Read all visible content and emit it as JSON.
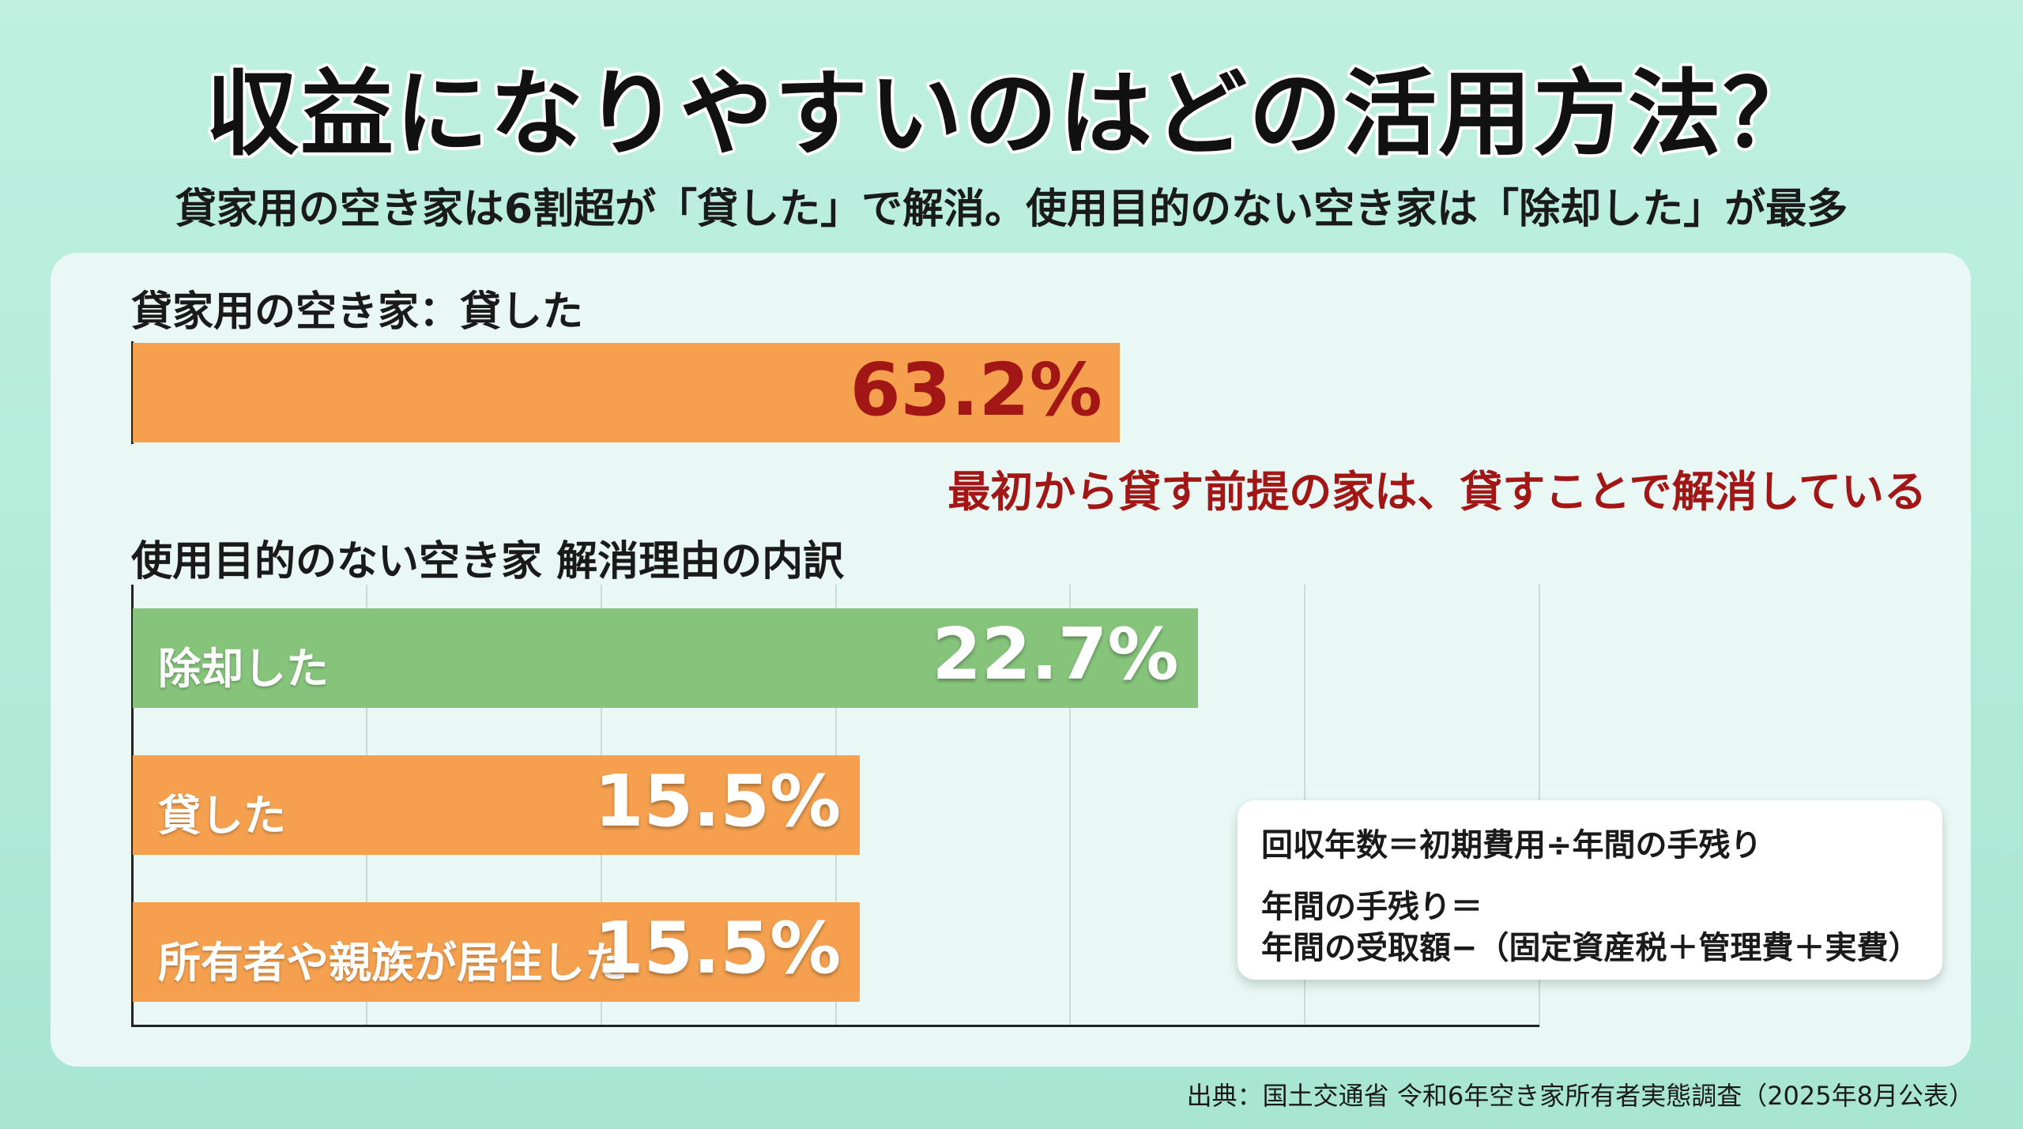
{
  "title": "収益になりやすいのはどの活用方法？",
  "subtitle": "貸家用の空き家は6割超が「貸した」で解消。使用目的のない空き家は「除却した」が最多",
  "colors": {
    "orange": "#f4a04f",
    "green": "#86c47c",
    "accent_red": "#a31616",
    "background": "#b6ecdb"
  },
  "chart_data": [
    {
      "type": "bar",
      "title": "貸家用の空き家：貸した",
      "categories": [
        "貸した"
      ],
      "values": [
        63.2
      ],
      "value_labels": [
        "63.2%"
      ],
      "unit": "%",
      "xlim": [
        0,
        100
      ],
      "annotation": "最初から貸す前提の家は、貸すことで解消している",
      "color": "#f4a04f"
    },
    {
      "type": "bar",
      "title": "使用目的のない空き家 解消理由の内訳",
      "categories": [
        "除却した",
        "貸した",
        "所有者や親族が居住した"
      ],
      "values": [
        22.7,
        15.5,
        15.5
      ],
      "value_labels": [
        "22.7%",
        "15.5%",
        "15.5%"
      ],
      "colors": [
        "#86c47c",
        "#f4a04f",
        "#f4a04f"
      ],
      "unit": "%",
      "xlim": [
        0,
        30
      ],
      "grid": true
    }
  ],
  "formula": {
    "line1": "回収年数＝初期費用÷年間の手残り",
    "line2": "年間の手残り＝",
    "line3": "年間の受取額−（固定資産税＋管理費＋実費）"
  },
  "source": "出典：国土交通省 令和6年空き家所有者実態調査（2025年8月公表）"
}
